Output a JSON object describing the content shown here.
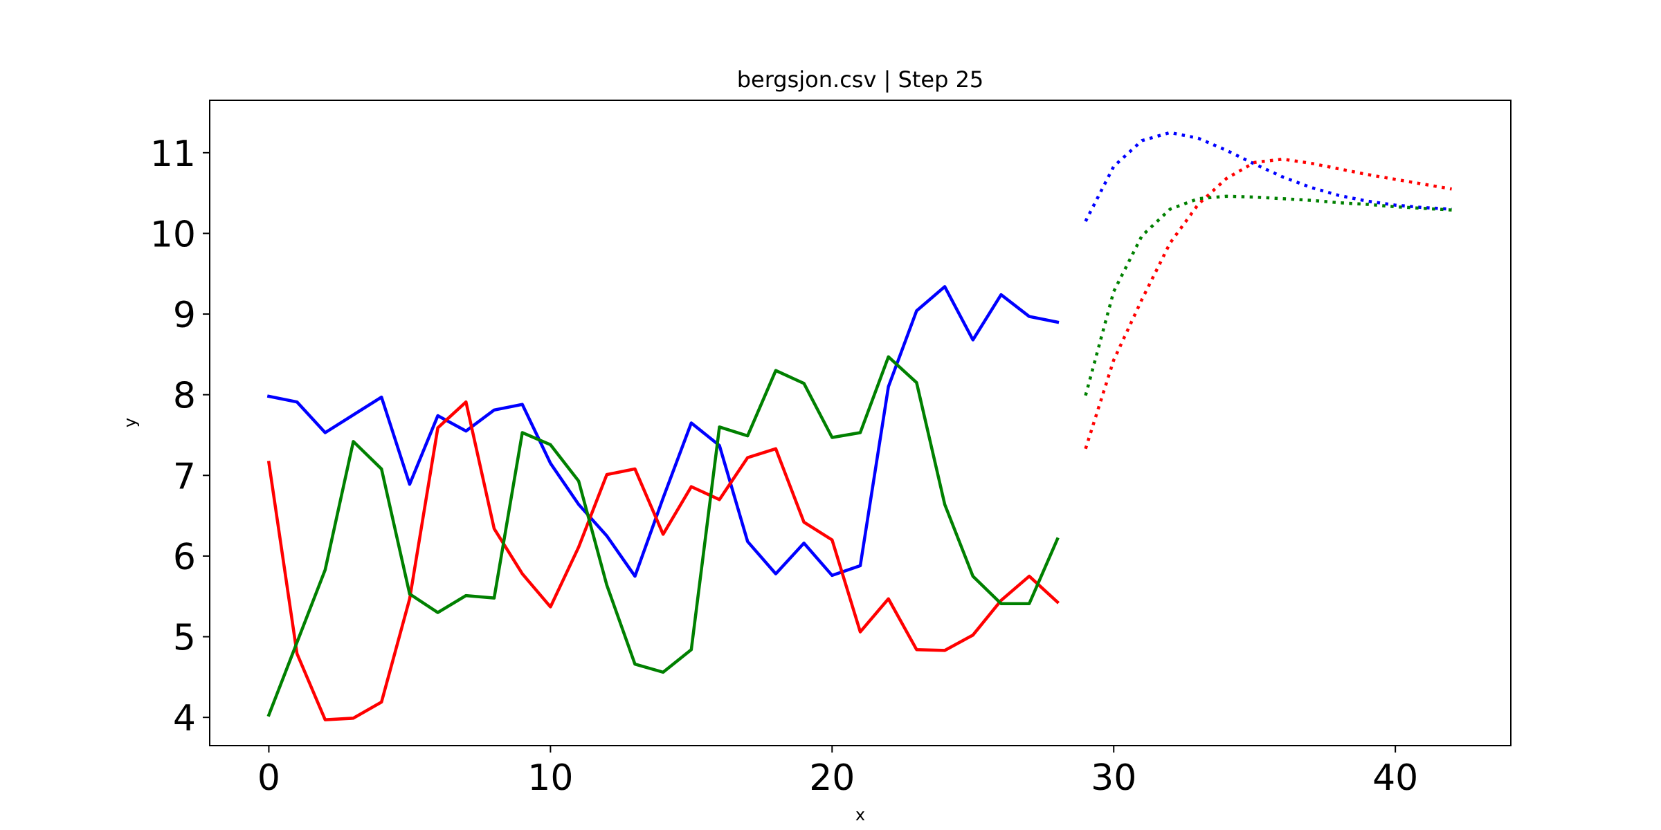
{
  "chart_data": {
    "type": "line",
    "title": "bergsjon.csv | Step 25",
    "xlabel": "x",
    "ylabel": "y",
    "xlim": [
      -2.1,
      44.1
    ],
    "ylim": [
      3.65,
      11.65
    ],
    "x_ticks": [
      0,
      10,
      20,
      30,
      40
    ],
    "y_ticks": [
      4,
      5,
      6,
      7,
      8,
      9,
      10,
      11
    ],
    "grid": false,
    "legend": "none",
    "series": [
      {
        "color": "#0000ff",
        "style": "solid",
        "x": [
          0,
          1,
          2,
          3,
          4,
          5,
          6,
          7,
          8,
          9,
          10,
          11,
          12,
          13,
          14,
          15,
          16,
          17,
          18,
          19,
          20,
          21,
          22,
          23,
          24,
          25,
          26,
          27,
          28
        ],
        "values": [
          7.98,
          7.91,
          7.53,
          7.75,
          7.97,
          6.89,
          7.74,
          7.55,
          7.81,
          7.88,
          7.15,
          6.64,
          6.25,
          5.75,
          6.72,
          7.65,
          7.37,
          6.18,
          5.78,
          6.16,
          5.76,
          5.88,
          8.1,
          9.04,
          9.34,
          8.68,
          9.24,
          8.97,
          8.9
        ]
      },
      {
        "color": "#ff0000",
        "style": "solid",
        "x": [
          0,
          1,
          2,
          3,
          4,
          5,
          6,
          7,
          8,
          9,
          10,
          11,
          12,
          13,
          14,
          15,
          16,
          17,
          18,
          19,
          20,
          21,
          22,
          23,
          24,
          25,
          26,
          27,
          28
        ],
        "values": [
          7.16,
          4.79,
          3.97,
          3.99,
          4.19,
          5.47,
          7.59,
          7.91,
          6.34,
          5.78,
          5.37,
          6.11,
          7.01,
          7.08,
          6.27,
          6.86,
          6.7,
          7.22,
          7.33,
          6.42,
          6.2,
          5.06,
          5.47,
          4.84,
          4.83,
          5.02,
          5.45,
          5.75,
          5.43
        ]
      },
      {
        "color": "#008000",
        "style": "solid",
        "x": [
          0,
          1,
          2,
          3,
          4,
          5,
          6,
          7,
          8,
          9,
          10,
          11,
          12,
          13,
          14,
          15,
          16,
          17,
          18,
          19,
          20,
          21,
          22,
          23,
          24,
          25,
          26,
          27,
          28
        ],
        "values": [
          4.03,
          4.93,
          5.83,
          7.42,
          7.08,
          5.53,
          5.3,
          5.51,
          5.48,
          7.53,
          7.38,
          6.93,
          5.64,
          4.66,
          4.56,
          4.84,
          7.6,
          7.49,
          8.3,
          8.14,
          7.47,
          7.53,
          8.47,
          8.15,
          6.64,
          5.75,
          5.41,
          5.41,
          6.21
        ]
      },
      {
        "color": "#0000ff",
        "style": "dotted",
        "x": [
          29,
          30,
          31,
          32,
          33,
          34,
          35,
          36,
          37,
          38,
          39,
          40,
          41,
          42
        ],
        "values": [
          10.15,
          10.83,
          11.15,
          11.25,
          11.18,
          11.03,
          10.86,
          10.7,
          10.57,
          10.47,
          10.4,
          10.35,
          10.32,
          10.3
        ]
      },
      {
        "color": "#ff0000",
        "style": "dotted",
        "x": [
          29,
          30,
          31,
          32,
          33,
          34,
          35,
          36,
          37,
          38,
          39,
          40,
          41,
          42
        ],
        "values": [
          7.33,
          8.43,
          9.18,
          9.88,
          10.36,
          10.68,
          10.88,
          10.92,
          10.87,
          10.8,
          10.73,
          10.67,
          10.61,
          10.55
        ]
      },
      {
        "color": "#008000",
        "style": "dotted",
        "x": [
          29,
          30,
          31,
          32,
          33,
          34,
          35,
          36,
          37,
          38,
          39,
          40,
          41,
          42
        ],
        "values": [
          7.99,
          9.28,
          9.97,
          10.3,
          10.43,
          10.46,
          10.45,
          10.43,
          10.41,
          10.38,
          10.36,
          10.33,
          10.31,
          10.29
        ]
      }
    ]
  }
}
